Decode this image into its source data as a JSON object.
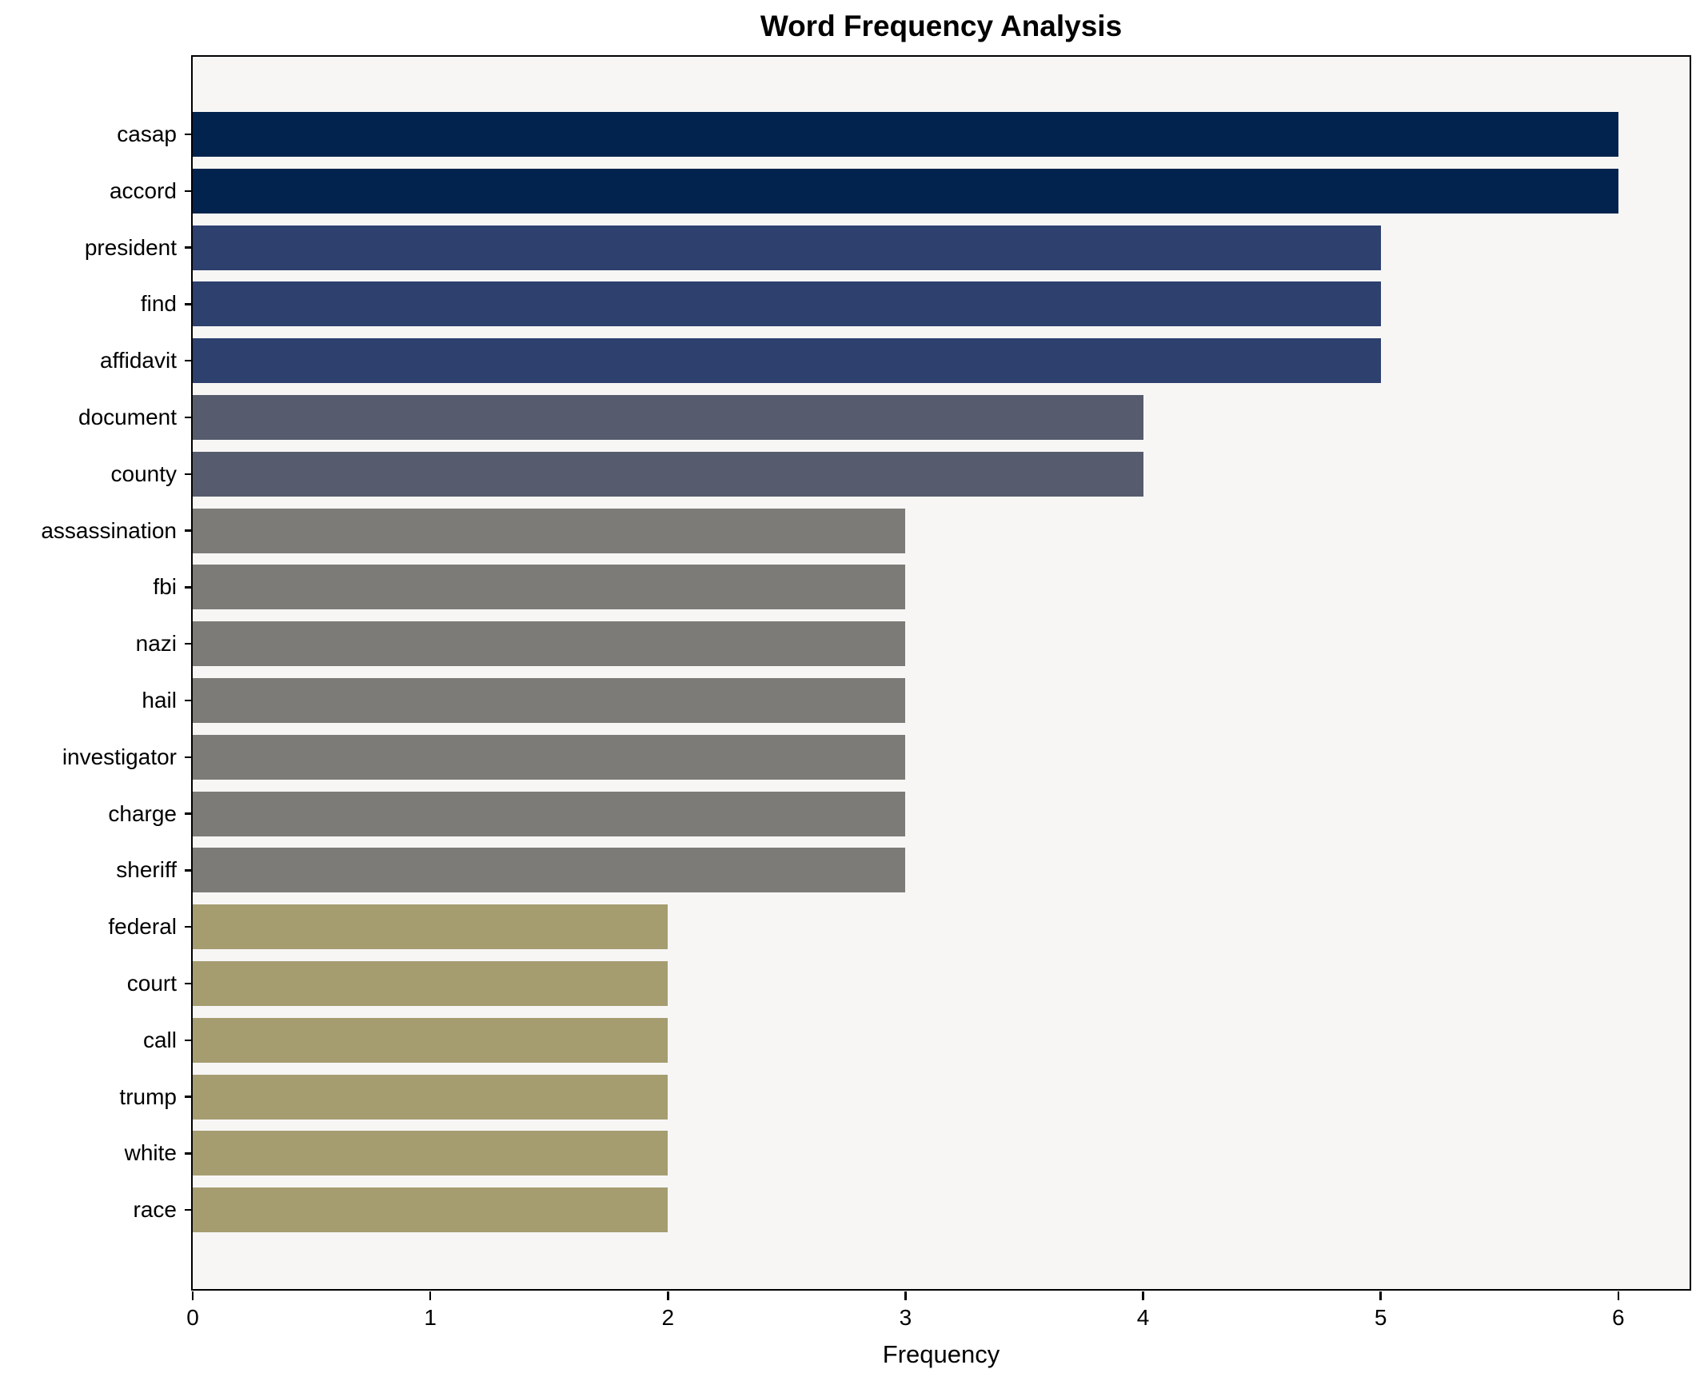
{
  "figure": {
    "background": "#ffffff"
  },
  "chart_data": {
    "type": "bar",
    "orientation": "horizontal",
    "title": "Word Frequency Analysis",
    "xlabel": "Frequency",
    "ylabel": "",
    "xlim": [
      0,
      6.3
    ],
    "x_ticks": [
      0,
      1,
      2,
      3,
      4,
      5,
      6
    ],
    "grid": false,
    "legend": false,
    "plot_background": "#f7f6f5",
    "spine_color": "#000000",
    "text_color": "#000000",
    "categories": [
      "casap",
      "accord",
      "president",
      "find",
      "affidavit",
      "document",
      "county",
      "assassination",
      "fbi",
      "nazi",
      "hail",
      "investigator",
      "charge",
      "sheriff",
      "federal",
      "court",
      "call",
      "trump",
      "white",
      "race"
    ],
    "values": [
      6,
      6,
      5,
      5,
      5,
      4,
      4,
      3,
      3,
      3,
      3,
      3,
      3,
      3,
      2,
      2,
      2,
      2,
      2,
      2
    ],
    "bar_colors": [
      "#02234d",
      "#02234d",
      "#2d406e",
      "#2d406e",
      "#2d406e",
      "#565c6d",
      "#565c6d",
      "#7c7b77",
      "#7c7b77",
      "#7c7b77",
      "#7c7b77",
      "#7c7b77",
      "#7c7b77",
      "#7c7b77",
      "#a59d70",
      "#a59d70",
      "#a59d70",
      "#a59d70",
      "#a59d70",
      "#a59d70"
    ]
  }
}
